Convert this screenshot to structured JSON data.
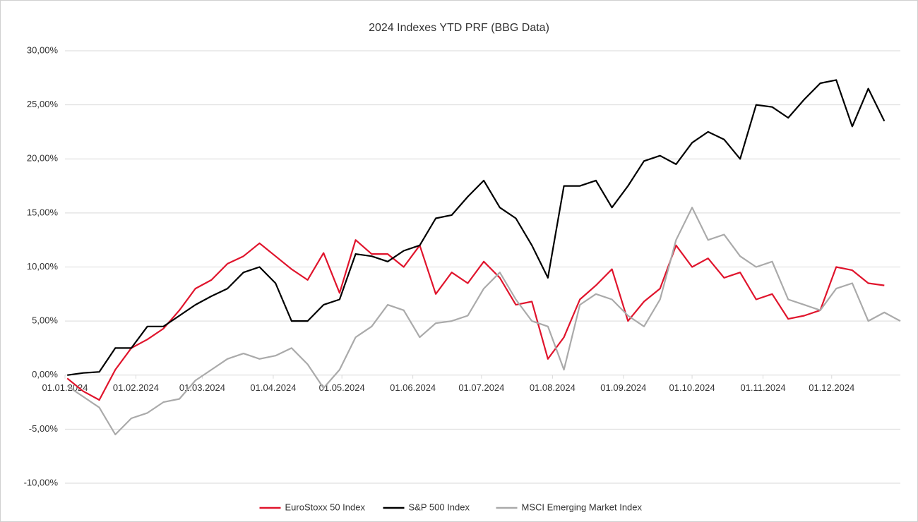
{
  "chart_data": {
    "type": "line",
    "title": "2024 Indexes YTD PRF (BBG Data)",
    "x": [
      "2024-01-02",
      "2024-01-09",
      "2024-01-16",
      "2024-01-23",
      "2024-01-30",
      "2024-02-06",
      "2024-02-13",
      "2024-02-20",
      "2024-02-27",
      "2024-03-05",
      "2024-03-12",
      "2024-03-19",
      "2024-03-26",
      "2024-04-02",
      "2024-04-09",
      "2024-04-16",
      "2024-04-23",
      "2024-04-30",
      "2024-05-07",
      "2024-05-14",
      "2024-05-21",
      "2024-05-28",
      "2024-06-04",
      "2024-06-11",
      "2024-06-18",
      "2024-06-25",
      "2024-07-02",
      "2024-07-09",
      "2024-07-16",
      "2024-07-23",
      "2024-07-30",
      "2024-08-06",
      "2024-08-13",
      "2024-08-20",
      "2024-08-27",
      "2024-09-03",
      "2024-09-10",
      "2024-09-17",
      "2024-09-24",
      "2024-10-01",
      "2024-10-08",
      "2024-10-15",
      "2024-10-22",
      "2024-10-29",
      "2024-11-05",
      "2024-11-12",
      "2024-11-19",
      "2024-11-26",
      "2024-12-03",
      "2024-12-10",
      "2024-12-17",
      "2024-12-24",
      "2024-12-31"
    ],
    "series": [
      {
        "name": "EuroStoxx 50 Index",
        "color": "#e0142c",
        "values": [
          -0.3,
          -1.5,
          -2.3,
          0.5,
          2.5,
          3.3,
          4.3,
          6.0,
          8.0,
          8.8,
          10.3,
          11.0,
          12.2,
          11.0,
          9.8,
          8.8,
          11.3,
          7.6,
          12.5,
          11.2,
          11.2,
          10.0,
          12.0,
          7.5,
          9.5,
          8.5,
          10.5,
          9.0,
          6.5,
          6.8,
          1.5,
          3.5,
          7.0,
          8.3,
          9.8,
          5.0,
          6.8,
          8.0,
          12.0,
          10.0,
          10.8,
          9.0,
          9.5,
          7.0,
          7.5,
          5.2,
          5.5,
          6.0,
          10.0,
          9.7,
          8.5,
          8.3,
          null
        ]
      },
      {
        "name": "S&P 500 Index",
        "color": "#000000",
        "values": [
          0,
          0.2,
          0.3,
          2.5,
          2.5,
          4.5,
          4.5,
          5.5,
          6.5,
          7.3,
          8.0,
          9.5,
          10.0,
          8.5,
          5.0,
          5.0,
          6.5,
          7.0,
          11.2,
          11.0,
          10.5,
          11.5,
          12.0,
          14.5,
          14.8,
          16.5,
          18.0,
          15.5,
          14.5,
          12.0,
          9.0,
          17.5,
          17.5,
          18.0,
          15.5,
          17.5,
          19.8,
          20.3,
          19.5,
          21.5,
          22.5,
          21.8,
          20.0,
          25.0,
          24.8,
          23.8,
          25.5,
          27.0,
          27.3,
          23.0,
          26.5,
          23.5,
          null
        ]
      },
      {
        "name": "MSCI Emerging Market Index",
        "color": "#aaaaaa",
        "values": [
          -1.0,
          -2.0,
          -3.0,
          -5.5,
          -4.0,
          -3.5,
          -2.5,
          -2.2,
          -0.5,
          0.5,
          1.5,
          2.0,
          1.5,
          1.8,
          2.5,
          1.0,
          -1.2,
          0.5,
          3.5,
          4.5,
          6.5,
          6.0,
          3.5,
          4.8,
          5.0,
          5.5,
          8.0,
          9.5,
          7.0,
          5.0,
          4.5,
          0.5,
          6.5,
          7.5,
          7.0,
          5.5,
          4.5,
          7.0,
          12.5,
          15.5,
          12.5,
          13.0,
          11.0,
          10.0,
          10.5,
          7.0,
          6.5,
          6.0,
          8.0,
          8.5,
          5.0,
          5.8,
          5.0
        ]
      }
    ],
    "xlim": [
      "2024-01-01",
      "2024-12-31"
    ],
    "xticks": [
      {
        "value": "2024-01-01",
        "label": "01.01.2024"
      },
      {
        "value": "2024-02-01",
        "label": "01.02.2024"
      },
      {
        "value": "2024-03-01",
        "label": "01.03.2024"
      },
      {
        "value": "2024-04-01",
        "label": "01.04.2024"
      },
      {
        "value": "2024-05-01",
        "label": "01.05.2024"
      },
      {
        "value": "2024-06-01",
        "label": "01.06.2024"
      },
      {
        "value": "2024-07-01",
        "label": "01.07.2024"
      },
      {
        "value": "2024-08-01",
        "label": "01.08.2024"
      },
      {
        "value": "2024-09-01",
        "label": "01.09.2024"
      },
      {
        "value": "2024-10-01",
        "label": "01.10.2024"
      },
      {
        "value": "2024-11-01",
        "label": "01.11.2024"
      },
      {
        "value": "2024-12-01",
        "label": "01.12.2024"
      }
    ],
    "ylim": [
      -10,
      30
    ],
    "yticks": [
      {
        "value": -10,
        "label": "-10,00%"
      },
      {
        "value": -5,
        "label": "-5,00%"
      },
      {
        "value": 0,
        "label": "0,00%"
      },
      {
        "value": 5,
        "label": "5,00%"
      },
      {
        "value": 10,
        "label": "10,00%"
      },
      {
        "value": 15,
        "label": "15,00%"
      },
      {
        "value": 20,
        "label": "20,00%"
      },
      {
        "value": 25,
        "label": "25,00%"
      },
      {
        "value": 30,
        "label": "30,00%"
      }
    ],
    "grid": true,
    "legend": "bottom"
  }
}
